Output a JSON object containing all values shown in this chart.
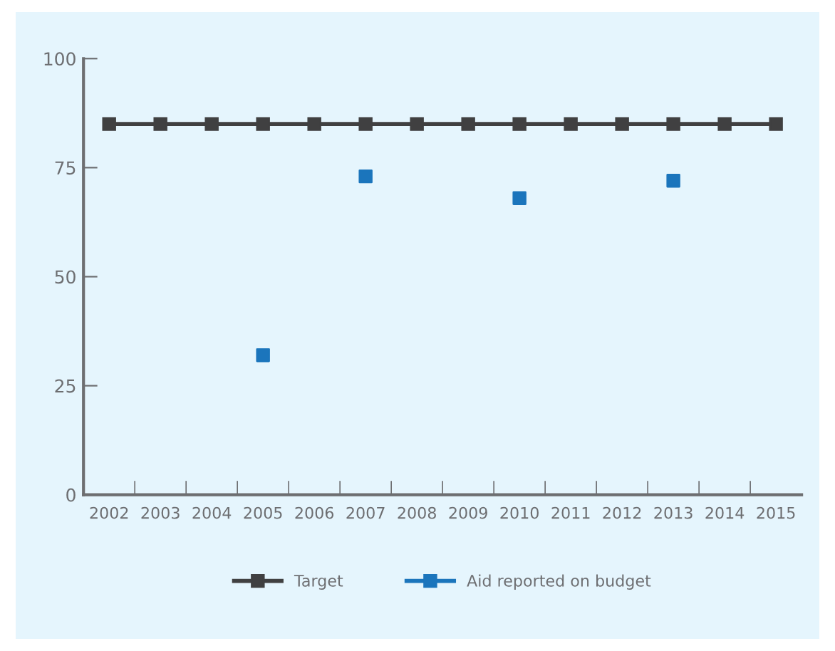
{
  "chart_data": {
    "type": "line",
    "categories": [
      "2002",
      "2003",
      "2004",
      "2005",
      "2006",
      "2007",
      "2008",
      "2009",
      "2010",
      "2011",
      "2012",
      "2013",
      "2014",
      "2015"
    ],
    "series": [
      {
        "name": "Target",
        "color": "#404041",
        "values": [
          85,
          85,
          85,
          85,
          85,
          85,
          85,
          85,
          85,
          85,
          85,
          85,
          85,
          85
        ]
      },
      {
        "name": "Aid reported on budget",
        "type": "scatter",
        "color": "#1b75bc",
        "values": [
          null,
          null,
          null,
          32,
          null,
          73,
          null,
          null,
          68,
          null,
          null,
          72,
          null,
          null
        ]
      }
    ],
    "ylim": [
      0,
      100
    ],
    "yticks": [
      0,
      25,
      50,
      75,
      100
    ],
    "grid": false,
    "legend": "bottom",
    "marker": "square",
    "line_style": "solid"
  }
}
